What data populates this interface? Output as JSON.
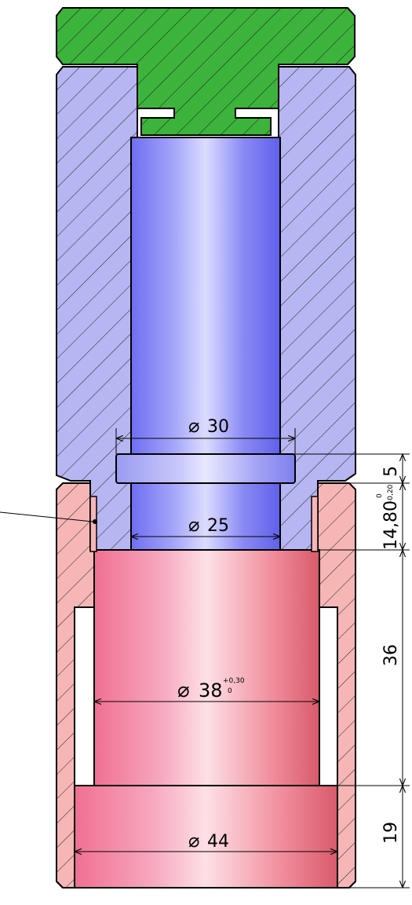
{
  "dimensions": {
    "top_bore": {
      "symbol": "⌀",
      "value": "30"
    },
    "lower_bore": {
      "symbol": "⌀",
      "value": "25"
    },
    "sleeve_bore": {
      "symbol": "⌀",
      "value": "38",
      "tol_upper": "+0,30",
      "tol_lower": "0"
    },
    "base_bore": {
      "symbol": "⌀",
      "value": "44"
    },
    "collar_height": {
      "value": "5"
    },
    "shoulder_height": {
      "value": "14,80",
      "tol_upper": "0",
      "tol_lower": "-0,20"
    },
    "sleeve_height": {
      "value": "36"
    },
    "base_height": {
      "value": "19"
    }
  },
  "colors": {
    "cap_green": "#3cb43c",
    "body_blue": "#b4b4f0",
    "body_blue_dark": "#6a6af0",
    "sleeve_pink": "#f5b4b4",
    "sleeve_pink_dark": "#e06070",
    "hatch": "#1a1a1a"
  }
}
